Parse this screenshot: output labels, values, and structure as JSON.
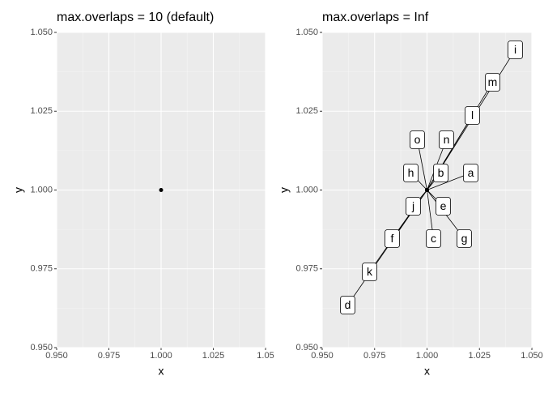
{
  "chart_data": [
    {
      "type": "scatter",
      "title": "max.overlaps = 10 (default)",
      "x_label": "x",
      "y_label": "y",
      "x": [
        1
      ],
      "y": [
        1
      ],
      "color": "#000000",
      "grid": true,
      "xlim": [
        0.95,
        1.05
      ],
      "ylim": [
        0.95,
        1.05
      ],
      "xticks": [
        {
          "value": 0.95,
          "label": "0.950"
        },
        {
          "value": 0.975,
          "label": "0.975"
        },
        {
          "value": 1,
          "label": "1.000"
        },
        {
          "value": 1.025,
          "label": "1.025"
        },
        {
          "value": 1.05,
          "label": "1.05"
        }
      ],
      "yticks": [
        {
          "value": 0.95,
          "label": "0.950"
        },
        {
          "value": 0.975,
          "label": "0.975"
        },
        {
          "value": 1,
          "label": "1.000"
        },
        {
          "value": 1.025,
          "label": "1.025"
        },
        {
          "value": 1.05,
          "label": "1.050"
        }
      ]
    },
    {
      "type": "scatter",
      "title": "max.overlaps = Inf",
      "x_label": "x",
      "y_label": "y",
      "x": [
        1,
        1,
        1,
        1,
        1,
        1,
        1,
        1,
        1,
        1,
        1,
        1,
        1,
        1,
        1
      ],
      "y": [
        1,
        1,
        1,
        1,
        1,
        1,
        1,
        1,
        1,
        1,
        1,
        1,
        1,
        1,
        1
      ],
      "labels": [
        "a",
        "b",
        "c",
        "d",
        "e",
        "f",
        "g",
        "h",
        "i",
        "j",
        "k",
        "l",
        "m",
        "n",
        "o"
      ],
      "color": "#000000",
      "grid": true,
      "xlim": [
        0.95,
        1.05
      ],
      "ylim": [
        0.95,
        1.05
      ],
      "xticks": [
        {
          "value": 0.95,
          "label": "0.950"
        },
        {
          "value": 0.975,
          "label": "0.975"
        },
        {
          "value": 1,
          "label": "1.000"
        },
        {
          "value": 1.025,
          "label": "1.025"
        },
        {
          "value": 1.05,
          "label": "1.050"
        }
      ],
      "yticks": [
        {
          "value": 0.95,
          "label": "0.950"
        },
        {
          "value": 0.975,
          "label": "0.975"
        },
        {
          "value": 1,
          "label": "1.000"
        },
        {
          "value": 1.025,
          "label": "1.025"
        },
        {
          "value": 1.05,
          "label": "1.050"
        }
      ]
    }
  ]
}
